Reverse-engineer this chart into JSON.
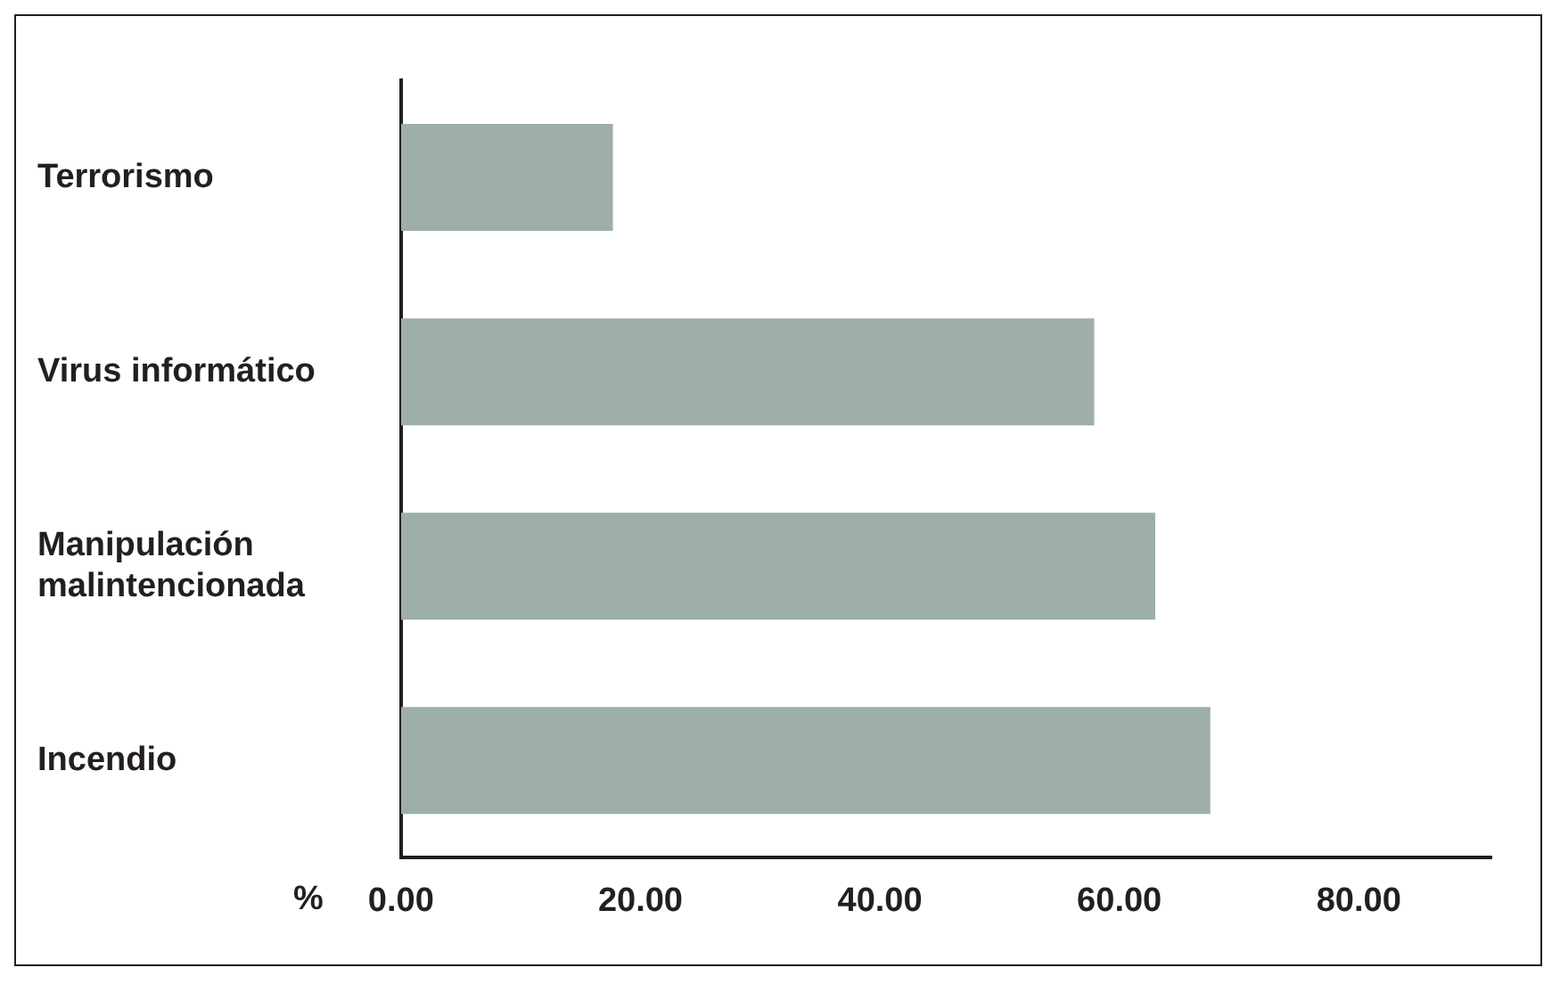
{
  "chart_data": {
    "type": "bar",
    "orientation": "horizontal",
    "xlabel": "%",
    "categories": [
      "Terrorismo",
      "Virus informático",
      "Manipulación malintencionada",
      "Incendio"
    ],
    "values": [
      17.7,
      57.9,
      63.0,
      67.6
    ],
    "color": "#9eaeaa",
    "xlim": [
      0,
      91
    ],
    "xticks": [
      {
        "value": 0,
        "label": "0.00"
      },
      {
        "value": 20,
        "label": "20.00"
      },
      {
        "value": 40,
        "label": "40.00"
      },
      {
        "value": 60,
        "label": "60.00"
      },
      {
        "value": 80,
        "label": "80.00"
      }
    ],
    "grid": false,
    "legend": false
  }
}
